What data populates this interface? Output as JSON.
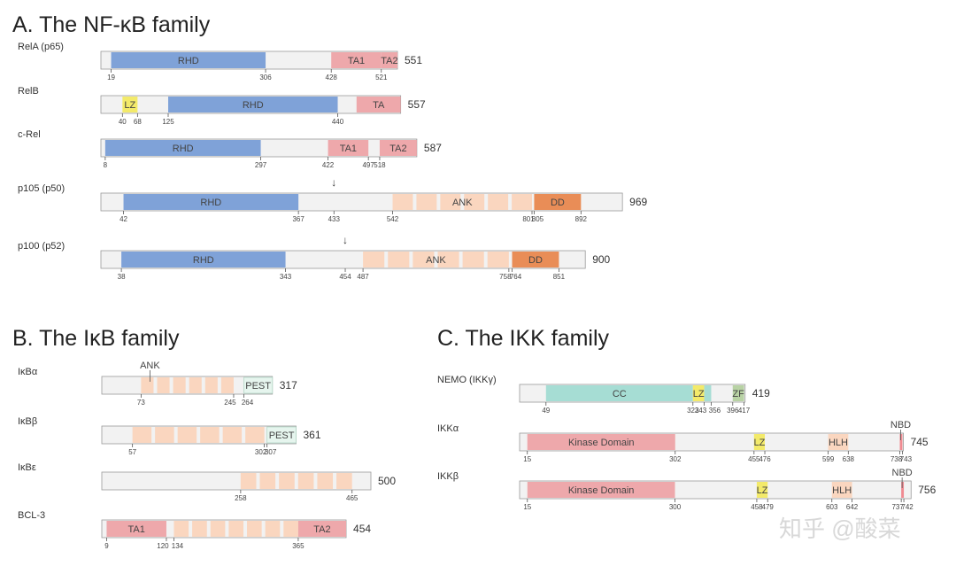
{
  "colors": {
    "RHD": "#7fa2d8",
    "TA": "#eea8ab",
    "LZ": "#f3ea6a",
    "ANK": "#fad6bf",
    "DD": "#e98d57",
    "PEST": "#e6f5ee",
    "CC": "#a6ddd4",
    "ZF": "#b8d2a4",
    "Kinase": "#eea8ab",
    "HLH": "#fad6bf",
    "NBD": "#f08a91",
    "bar": "#f2f2f2",
    "outline": "#9a9a9a"
  },
  "sections": {
    "a": {
      "title": "A. The NF-κB family"
    },
    "b": {
      "title": "B. The IκB family"
    },
    "c": {
      "title": "C. The IKK family"
    }
  },
  "proteins": [
    {
      "id": "rela",
      "section": "a",
      "name": "RelA (p65)",
      "length": 551,
      "domains": [
        {
          "type": "RHD",
          "label": "RHD",
          "start": 19,
          "end": 306
        },
        {
          "type": "TA",
          "label": "TA1",
          "start": 428,
          "end": 521
        },
        {
          "type": "TA",
          "label": "TA2",
          "start": 521,
          "end": 551
        }
      ],
      "positions": [
        19,
        306,
        428,
        521
      ]
    },
    {
      "id": "relb",
      "section": "a",
      "name": "RelB",
      "length": 557,
      "domains": [
        {
          "type": "LZ",
          "label": "LZ",
          "start": 40,
          "end": 68
        },
        {
          "type": "RHD",
          "label": "RHD",
          "start": 125,
          "end": 440
        },
        {
          "type": "TA",
          "label": "TA",
          "start": 475,
          "end": 557
        }
      ],
      "positions": [
        40,
        68,
        125,
        440
      ]
    },
    {
      "id": "crel",
      "section": "a",
      "name": "c-Rel",
      "length": 587,
      "domains": [
        {
          "type": "RHD",
          "label": "RHD",
          "start": 8,
          "end": 297
        },
        {
          "type": "TA",
          "label": "TA1",
          "start": 422,
          "end": 497
        },
        {
          "type": "TA",
          "label": "TA2",
          "start": 518,
          "end": 587
        }
      ],
      "positions": [
        8,
        297,
        422,
        497,
        518
      ]
    },
    {
      "id": "p105",
      "section": "a",
      "name": "p105 (p50)",
      "length": 969,
      "domains": [
        {
          "type": "RHD",
          "label": "RHD",
          "start": 42,
          "end": 367
        },
        {
          "type": "ANK",
          "label": "ANK",
          "start": 542,
          "end": 801,
          "segments": 6
        },
        {
          "type": "DD",
          "label": "DD",
          "start": 805,
          "end": 892
        }
      ],
      "positions": [
        42,
        367,
        433,
        542,
        801,
        805,
        892
      ],
      "arrow": "↓"
    },
    {
      "id": "p100",
      "section": "a",
      "name": "p100 (p52)",
      "length": 900,
      "domains": [
        {
          "type": "RHD",
          "label": "RHD",
          "start": 38,
          "end": 343
        },
        {
          "type": "ANK",
          "label": "ANK",
          "start": 487,
          "end": 758,
          "segments": 6
        },
        {
          "type": "DD",
          "label": "DD",
          "start": 764,
          "end": 851
        }
      ],
      "positions": [
        38,
        343,
        454,
        487,
        758,
        764,
        851
      ],
      "arrow": "↓"
    },
    {
      "id": "ikba",
      "section": "b",
      "name": "IκBα",
      "length": 317,
      "domains": [
        {
          "type": "ANK",
          "label": "",
          "start": 73,
          "end": 245,
          "segments": 6
        },
        {
          "type": "PEST",
          "label": "PEST",
          "start": 264,
          "end": 317
        }
      ],
      "positions": [
        73,
        245,
        264
      ],
      "callout": "ANK"
    },
    {
      "id": "ikbb",
      "section": "b",
      "name": "IκBβ",
      "length": 361,
      "domains": [
        {
          "type": "ANK",
          "label": "",
          "start": 57,
          "end": 302,
          "segments": 6
        },
        {
          "type": "PEST",
          "label": "PEST",
          "start": 307,
          "end": 361
        }
      ],
      "positions": [
        57,
        302,
        307
      ]
    },
    {
      "id": "ikbe",
      "section": "b",
      "name": "IκBε",
      "length": 500,
      "domains": [
        {
          "type": "ANK",
          "label": "",
          "start": 258,
          "end": 465,
          "segments": 6
        }
      ],
      "positions": [
        258,
        465
      ]
    },
    {
      "id": "bcl3",
      "section": "b",
      "name": "BCL-3",
      "length": 454,
      "domains": [
        {
          "type": "TA",
          "label": "TA1",
          "start": 9,
          "end": 120
        },
        {
          "type": "ANK",
          "label": "",
          "start": 134,
          "end": 365,
          "segments": 7
        },
        {
          "type": "TA",
          "label": "TA2",
          "start": 365,
          "end": 454
        }
      ],
      "positions": [
        9,
        120,
        134,
        365
      ]
    },
    {
      "id": "nemo",
      "section": "c",
      "name": "NEMO (IKKγ)",
      "length": 419,
      "domains": [
        {
          "type": "CC",
          "label": "CC",
          "start": 49,
          "end": 322
        },
        {
          "type": "LZ",
          "label": "LZ",
          "start": 322,
          "end": 343
        },
        {
          "type": "CC",
          "label": "",
          "start": 343,
          "end": 356
        },
        {
          "type": "ZF",
          "label": "ZF",
          "start": 396,
          "end": 417
        }
      ],
      "positions": [
        49,
        322,
        343,
        356,
        396,
        417
      ]
    },
    {
      "id": "ikka",
      "section": "c",
      "name": "IKKα",
      "length": 745,
      "domains": [
        {
          "type": "Kinase",
          "label": "Kinase Domain",
          "start": 15,
          "end": 302
        },
        {
          "type": "LZ",
          "label": "LZ",
          "start": 455,
          "end": 476
        },
        {
          "type": "HLH",
          "label": "HLH",
          "start": 599,
          "end": 638
        },
        {
          "type": "NBD",
          "label": "",
          "start": 738,
          "end": 743
        }
      ],
      "positions": [
        15,
        302,
        455,
        476,
        599,
        638,
        738,
        743
      ],
      "callout": "NBD"
    },
    {
      "id": "ikkb",
      "section": "c",
      "name": "IKKβ",
      "length": 756,
      "domains": [
        {
          "type": "Kinase",
          "label": "Kinase Domain",
          "start": 15,
          "end": 300
        },
        {
          "type": "LZ",
          "label": "LZ",
          "start": 458,
          "end": 479
        },
        {
          "type": "HLH",
          "label": "HLH",
          "start": 603,
          "end": 642
        },
        {
          "type": "NBD",
          "label": "",
          "start": 737,
          "end": 742
        }
      ],
      "positions": [
        15,
        300,
        458,
        479,
        603,
        642,
        737,
        742
      ],
      "callout": "NBD"
    }
  ],
  "watermark": "知乎 @酸菜"
}
